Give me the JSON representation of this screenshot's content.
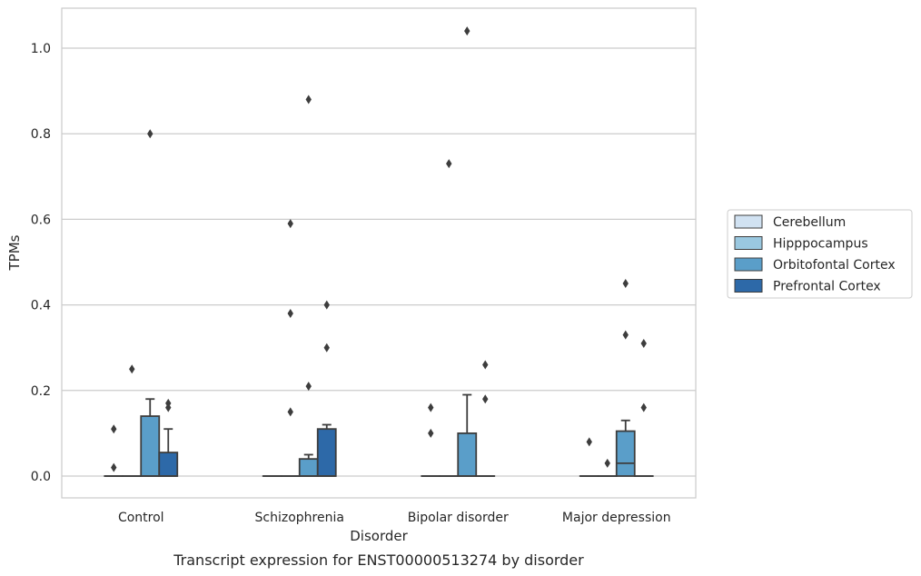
{
  "chart_data": {
    "type": "box",
    "caption": "Transcript expression for ENST00000513274 by disorder",
    "xlabel": "Disorder",
    "ylabel": "TPMs",
    "ylim": [
      -0.05,
      1.09
    ],
    "yticks": [
      0.0,
      0.2,
      0.4,
      0.6,
      0.8,
      1.0
    ],
    "ytick_labels": [
      "0.0",
      "0.2",
      "0.4",
      "0.6",
      "0.8",
      "1.0"
    ],
    "grid": "horizontal",
    "legend_position": "right",
    "categories": [
      "Control",
      "Schizophrenia",
      "Bipolar disorder",
      "Major depression"
    ],
    "series": [
      {
        "name": "Cerebellum",
        "color": "#d1e2f2",
        "boxes": [
          {
            "q1": 0,
            "median": 0,
            "q3": 0,
            "whislo": 0,
            "whishi": 0,
            "fliers": [
              0.02,
              0.11
            ]
          },
          {
            "q1": 0,
            "median": 0,
            "q3": 0,
            "whislo": 0,
            "whishi": 0,
            "fliers": []
          },
          {
            "q1": 0,
            "median": 0,
            "q3": 0,
            "whislo": 0,
            "whishi": 0,
            "fliers": [
              0.1,
              0.16
            ]
          },
          {
            "q1": 0,
            "median": 0,
            "q3": 0,
            "whislo": 0,
            "whishi": 0,
            "fliers": [
              0.08
            ]
          }
        ]
      },
      {
        "name": "Hipppocampus",
        "color": "#9ac8e0",
        "boxes": [
          {
            "q1": 0,
            "median": 0,
            "q3": 0,
            "whislo": 0,
            "whishi": 0,
            "fliers": [
              0.25
            ]
          },
          {
            "q1": 0,
            "median": 0,
            "q3": 0,
            "whislo": 0,
            "whishi": 0,
            "fliers": [
              0.15,
              0.38,
              0.59
            ]
          },
          {
            "q1": 0,
            "median": 0,
            "q3": 0,
            "whislo": 0,
            "whishi": 0,
            "fliers": [
              0.73
            ]
          },
          {
            "q1": 0,
            "median": 0,
            "q3": 0,
            "whislo": 0,
            "whishi": 0,
            "fliers": [
              0.03
            ]
          }
        ]
      },
      {
        "name": "Orbitofontal Cortex",
        "color": "#5a9ec9",
        "boxes": [
          {
            "q1": 0,
            "median": 0,
            "q3": 0.14,
            "whislo": 0,
            "whishi": 0.18,
            "fliers": [
              0.8
            ]
          },
          {
            "q1": 0,
            "median": 0,
            "q3": 0.04,
            "whislo": 0,
            "whishi": 0.05,
            "fliers": [
              0.21,
              0.88
            ]
          },
          {
            "q1": 0,
            "median": 0,
            "q3": 0.1,
            "whislo": 0,
            "whishi": 0.19,
            "fliers": [
              1.04
            ]
          },
          {
            "q1": 0,
            "median": 0.03,
            "q3": 0.105,
            "whislo": 0,
            "whishi": 0.13,
            "fliers": [
              0.33,
              0.45
            ]
          }
        ]
      },
      {
        "name": "Prefrontal Cortex",
        "color": "#2d69a8",
        "boxes": [
          {
            "q1": 0,
            "median": 0,
            "q3": 0.055,
            "whislo": 0,
            "whishi": 0.11,
            "fliers": [
              0.16,
              0.17
            ]
          },
          {
            "q1": 0,
            "median": 0,
            "q3": 0.11,
            "whislo": 0,
            "whishi": 0.12,
            "fliers": [
              0.3,
              0.4
            ]
          },
          {
            "q1": 0,
            "median": 0,
            "q3": 0,
            "whislo": 0,
            "whishi": 0,
            "fliers": [
              0.18,
              0.26
            ]
          },
          {
            "q1": 0,
            "median": 0,
            "q3": 0,
            "whislo": 0,
            "whishi": 0,
            "fliers": [
              0.16,
              0.31
            ]
          }
        ]
      }
    ]
  }
}
